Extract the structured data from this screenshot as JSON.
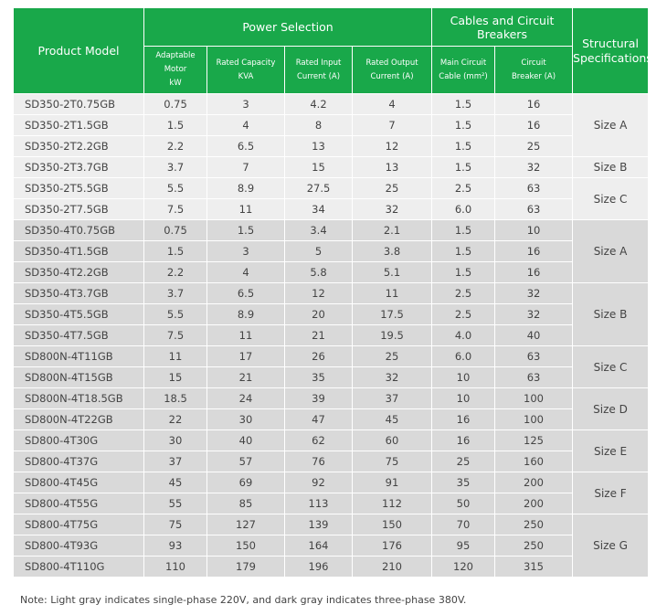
{
  "header": {
    "product_model": "Product Model",
    "power_selection": "Power Selection",
    "cables": "Cables and Circuit Breakers",
    "structural": [
      "Structural",
      "Specifications"
    ],
    "sub": [
      [
        "Adaptable Motor",
        "kW"
      ],
      [
        "Rated Capacity",
        "KVA"
      ],
      [
        "Rated Input",
        "Current (A)"
      ],
      [
        "Rated Output",
        "Current (A)"
      ],
      [
        "Main Circuit",
        "Cable (mm²)"
      ],
      [
        "Circuit",
        "Breaker (A)"
      ]
    ]
  },
  "sections": [
    {
      "groups": [
        {
          "size": "Size A",
          "rows": [
            [
              "SD350-2T0.75GB",
              "0.75",
              "3",
              "4.2",
              "4",
              "1.5",
              "16"
            ],
            [
              "SD350-2T1.5GB",
              "1.5",
              "4",
              "8",
              "7",
              "1.5",
              "16"
            ],
            [
              "SD350-2T2.2GB",
              "2.2",
              "6.5",
              "13",
              "12",
              "1.5",
              "25"
            ]
          ]
        },
        {
          "size": "Size B",
          "rows": [
            [
              "SD350-2T3.7GB",
              "3.7",
              "7",
              "15",
              "13",
              "1.5",
              "32"
            ]
          ]
        },
        {
          "size": "Size C",
          "rows": [
            [
              "SD350-2T5.5GB",
              "5.5",
              "8.9",
              "27.5",
              "25",
              "2.5",
              "63"
            ],
            [
              "SD350-2T7.5GB",
              "7.5",
              "11",
              "34",
              "32",
              "6.0",
              "63"
            ]
          ]
        }
      ]
    },
    {
      "groups": [
        {
          "size": "Size A",
          "rows": [
            [
              "SD350-4T0.75GB",
              "0.75",
              "1.5",
              "3.4",
              "2.1",
              "1.5",
              "10"
            ],
            [
              "SD350-4T1.5GB",
              "1.5",
              "3",
              "5",
              "3.8",
              "1.5",
              "16"
            ],
            [
              "SD350-4T2.2GB",
              "2.2",
              "4",
              "5.8",
              "5.1",
              "1.5",
              "16"
            ]
          ]
        },
        {
          "size": "Size B",
          "rows": [
            [
              "SD350-4T3.7GB",
              "3.7",
              "6.5",
              "12",
              "11",
              "2.5",
              "32"
            ],
            [
              "SD350-4T5.5GB",
              "5.5",
              "8.9",
              "20",
              "17.5",
              "2.5",
              "32"
            ],
            [
              "SD350-4T7.5GB",
              "7.5",
              "11",
              "21",
              "19.5",
              "4.0",
              "40"
            ]
          ]
        },
        {
          "size": "Size C",
          "rows": [
            [
              "SD800N-4T11GB",
              "11",
              "17",
              "26",
              "25",
              "6.0",
              "63"
            ],
            [
              "SD800N-4T15GB",
              "15",
              "21",
              "35",
              "32",
              "10",
              "63"
            ]
          ]
        },
        {
          "size": "Size D",
          "rows": [
            [
              "SD800N-4T18.5GB",
              "18.5",
              "24",
              "39",
              "37",
              "10",
              "100"
            ],
            [
              "SD800N-4T22GB",
              "22",
              "30",
              "47",
              "45",
              "16",
              "100"
            ]
          ]
        },
        {
          "size": "Size E",
          "rows": [
            [
              "SD800-4T30G",
              "30",
              "40",
              "62",
              "60",
              "16",
              "125"
            ],
            [
              "SD800-4T37G",
              "37",
              "57",
              "76",
              "75",
              "25",
              "160"
            ]
          ]
        },
        {
          "size": "Size F",
          "rows": [
            [
              "SD800-4T45G",
              "45",
              "69",
              "92",
              "91",
              "35",
              "200"
            ],
            [
              "SD800-4T55G",
              "55",
              "85",
              "113",
              "112",
              "50",
              "200"
            ]
          ]
        },
        {
          "size": "Size G",
          "rows": [
            [
              "SD800-4T75G",
              "75",
              "127",
              "139",
              "150",
              "70",
              "250"
            ],
            [
              "SD800-4T93G",
              "93",
              "150",
              "164",
              "176",
              "95",
              "250"
            ],
            [
              "SD800-4T110G",
              "110",
              "179",
              "196",
              "210",
              "120",
              "315"
            ]
          ]
        }
      ]
    }
  ],
  "note": "Note: Light gray indicates single-phase 220V, and dark gray indicates three-phase 380V."
}
